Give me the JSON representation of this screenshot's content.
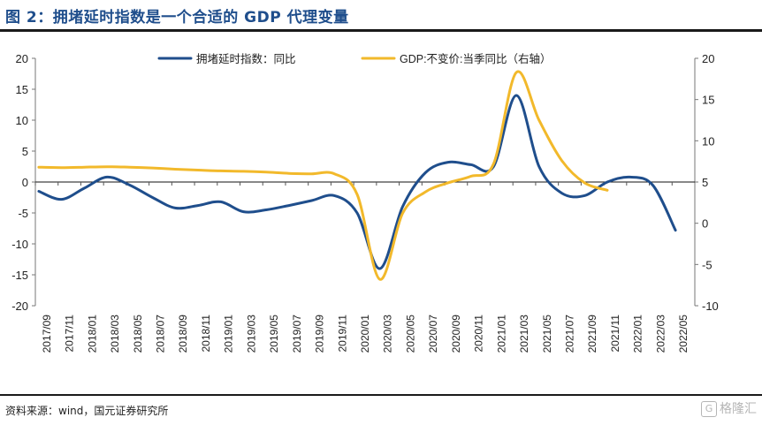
{
  "title": "图 2：拥堵延时指数是一个合适的 GDP 代理变量",
  "source": "资料来源：wind，国元证券研究所",
  "watermark": {
    "icon": "G",
    "text": "格隆汇"
  },
  "colors": {
    "series1": "#1f4e8c",
    "series2": "#f2b92b",
    "accent": "#1f4e8c"
  },
  "chart_data": {
    "type": "line",
    "title": "",
    "legend_position": "top",
    "grid": false,
    "x_ticks": [
      "2017/09",
      "2017/11",
      "2018/01",
      "2018/03",
      "2018/05",
      "2018/07",
      "2018/09",
      "2018/11",
      "2019/01",
      "2019/03",
      "2019/05",
      "2019/07",
      "2019/09",
      "2019/11",
      "2020/01",
      "2020/03",
      "2020/05",
      "2020/07",
      "2020/09",
      "2020/11",
      "2021/01",
      "2021/03",
      "2021/05",
      "2021/07",
      "2021/09",
      "2021/11",
      "2022/01",
      "2022/03",
      "2022/05"
    ],
    "y_left": {
      "range": [
        -20,
        20
      ],
      "ticks": [
        -20,
        -15,
        -10,
        -5,
        0,
        5,
        10,
        15,
        20
      ]
    },
    "y_right": {
      "range": [
        -10,
        20
      ],
      "ticks": [
        -10,
        -5,
        0,
        5,
        10,
        15,
        20
      ]
    },
    "series": [
      {
        "name": "拥堵延时指数：同比",
        "axis": "left",
        "points": [
          [
            "2017/09",
            -1.5
          ],
          [
            "2017/11",
            -2.8
          ],
          [
            "2018/01",
            -1.0
          ],
          [
            "2018/03",
            0.8
          ],
          [
            "2018/05",
            -0.5
          ],
          [
            "2018/07",
            -2.5
          ],
          [
            "2018/09",
            -4.2
          ],
          [
            "2018/11",
            -3.8
          ],
          [
            "2019/01",
            -3.2
          ],
          [
            "2019/03",
            -4.8
          ],
          [
            "2019/05",
            -4.5
          ],
          [
            "2019/07",
            -3.8
          ],
          [
            "2019/09",
            -3.0
          ],
          [
            "2019/11",
            -2.2
          ],
          [
            "2020/01",
            -5.0
          ],
          [
            "2020/03",
            -14.0
          ],
          [
            "2020/05",
            -4.0
          ],
          [
            "2020/07",
            1.5
          ],
          [
            "2020/09",
            3.2
          ],
          [
            "2020/11",
            2.8
          ],
          [
            "2021/01",
            2.5
          ],
          [
            "2021/03",
            14.0
          ],
          [
            "2021/05",
            2.5
          ],
          [
            "2021/07",
            -1.8
          ],
          [
            "2021/09",
            -2.2
          ],
          [
            "2021/11",
            0.0
          ],
          [
            "2022/01",
            0.8
          ],
          [
            "2022/03",
            -0.5
          ],
          [
            "2022/05",
            -7.8
          ]
        ]
      },
      {
        "name": "GDP:不变价:当季同比（右轴）",
        "axis": "right",
        "points": [
          [
            "2017/09",
            6.8
          ],
          [
            "2017/11",
            6.75
          ],
          [
            "2018/01",
            6.8
          ],
          [
            "2018/03",
            6.85
          ],
          [
            "2018/05",
            6.8
          ],
          [
            "2018/07",
            6.7
          ],
          [
            "2018/09",
            6.55
          ],
          [
            "2018/11",
            6.45
          ],
          [
            "2019/01",
            6.35
          ],
          [
            "2019/03",
            6.3
          ],
          [
            "2019/05",
            6.2
          ],
          [
            "2019/07",
            6.05
          ],
          [
            "2019/09",
            6.0
          ],
          [
            "2019/11",
            6.0
          ],
          [
            "2020/01",
            3.5
          ],
          [
            "2020/03",
            -6.8
          ],
          [
            "2020/05",
            1.2
          ],
          [
            "2020/07",
            3.8
          ],
          [
            "2020/09",
            4.9
          ],
          [
            "2020/11",
            5.7
          ],
          [
            "2021/01",
            7.2
          ],
          [
            "2021/03",
            18.3
          ],
          [
            "2021/05",
            12.5
          ],
          [
            "2021/07",
            7.6
          ],
          [
            "2021/09",
            4.9
          ],
          [
            "2021/11",
            4.0
          ]
        ]
      }
    ]
  }
}
